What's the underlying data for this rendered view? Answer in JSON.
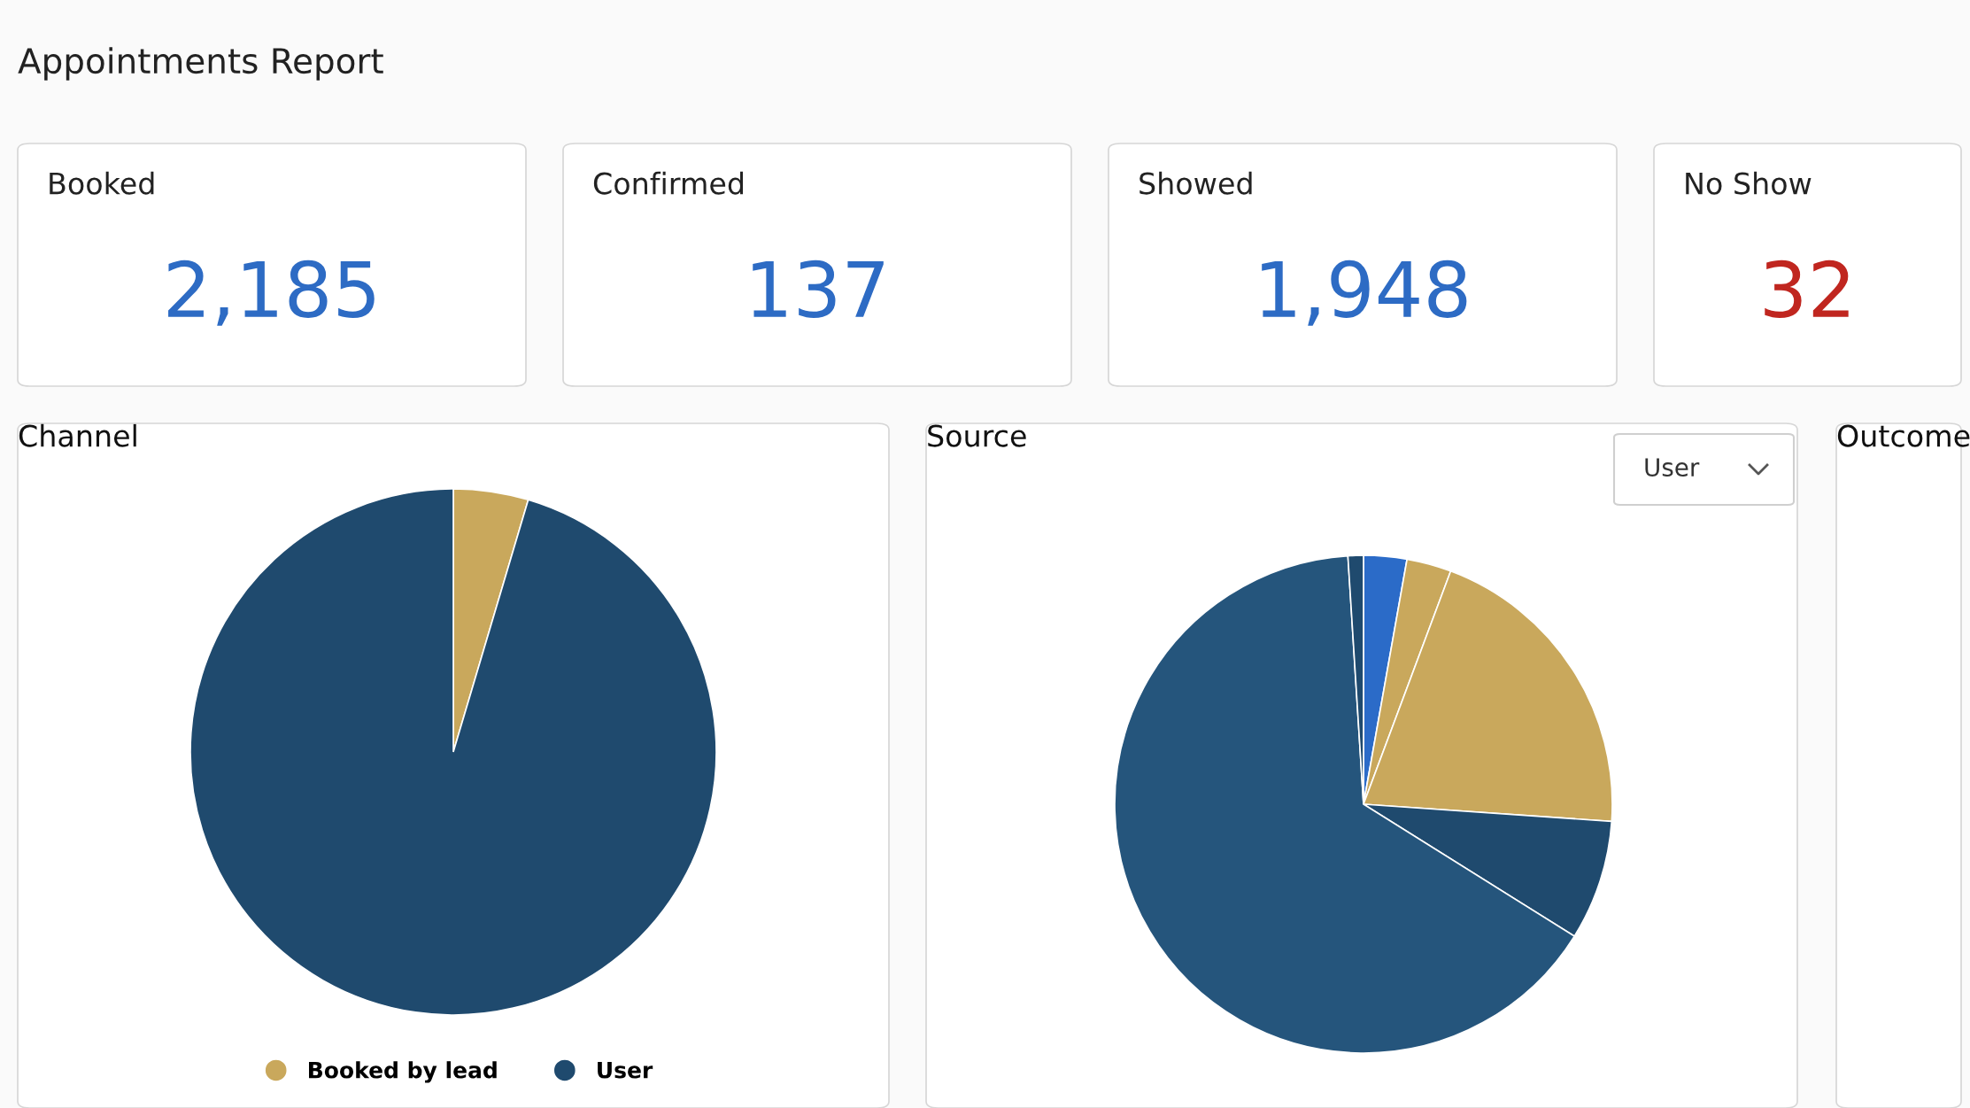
{
  "chart_data": [
    {
      "type": "other",
      "title": "Appointments Report"
    },
    {
      "type": "other",
      "title": "Booked",
      "annotations": [
        "2,185"
      ],
      "color": "#2d6bc4"
    },
    {
      "type": "other",
      "title": "Confirmed",
      "annotations": [
        "137"
      ],
      "color": "#2d6bc4"
    },
    {
      "type": "other",
      "title": "Showed",
      "annotations": [
        "1,948"
      ],
      "color": "#2d6bc4"
    },
    {
      "type": "other",
      "title": "No Show",
      "annotations": [
        "32"
      ],
      "color": "#c0261f"
    },
    {
      "type": "pie",
      "title": "Channel",
      "categories": [
        "Booked by lead",
        "User"
      ],
      "values": [
        4.6,
        95.4
      ],
      "colors": [
        "#c9a85c",
        "#1f4a6e"
      ],
      "legend": "bottom"
    },
    {
      "type": "pie",
      "title": "Source",
      "categories": [
        null,
        null,
        null,
        null,
        null,
        null
      ],
      "values": [
        2.8,
        2.9,
        20.4,
        7.8,
        65.1,
        1.0
      ],
      "colors": [
        "#2b6bc8",
        "#c9a85c",
        "#c9a85c",
        "#1f4a6e",
        "#25557c",
        "#1f4a6e"
      ],
      "annotations": [
        "User"
      ]
    },
    {
      "type": "other",
      "title": "Outcome"
    }
  ]
}
